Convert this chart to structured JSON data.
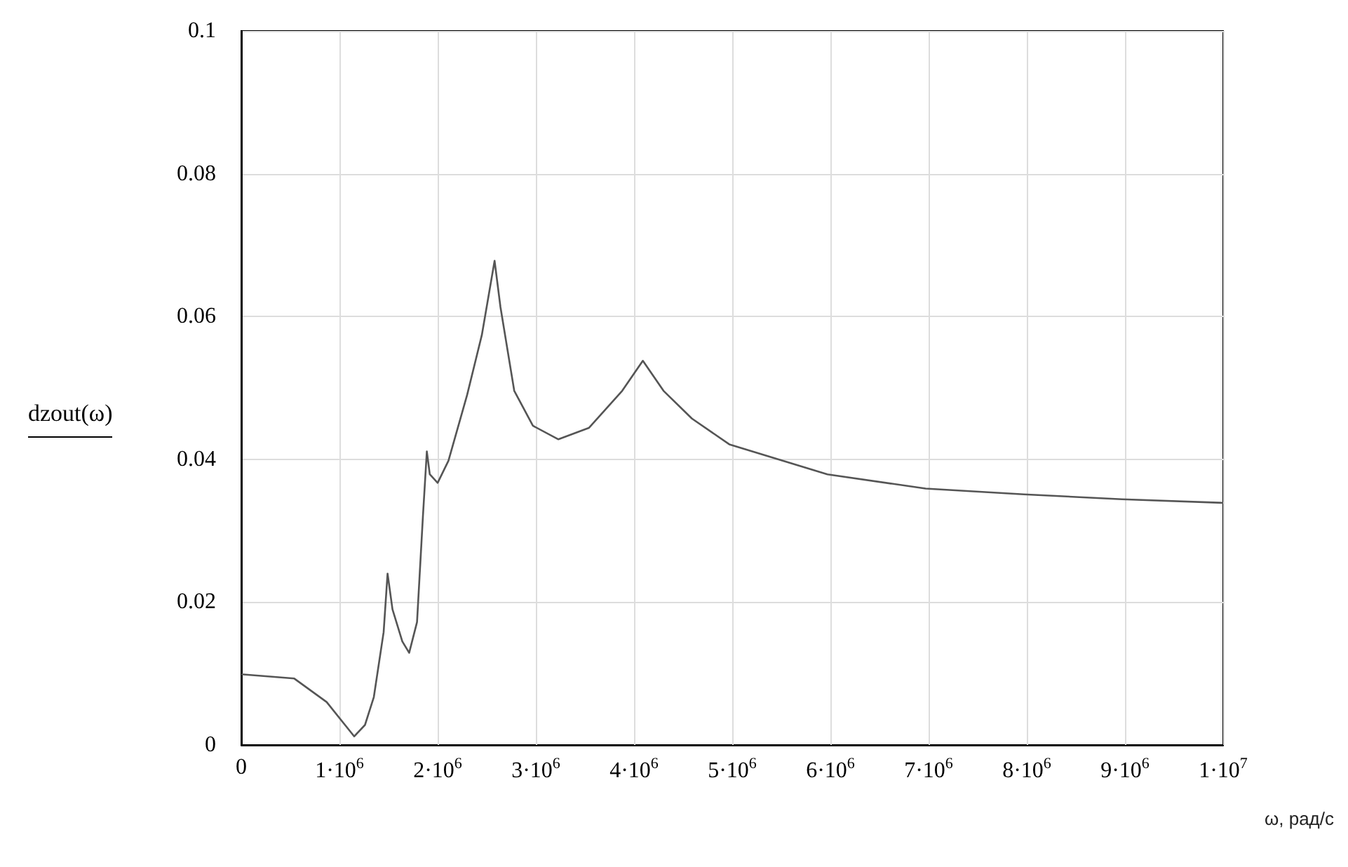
{
  "chart_data": {
    "type": "line",
    "ylabel": "dzout(ω)",
    "xlabel": "ω, рад/с",
    "x": [
      0,
      540000,
      870000,
      1150000,
      1260000,
      1350000,
      1450000,
      1490000,
      1540000,
      1640000,
      1710000,
      1790000,
      1850000,
      1890000,
      1920000,
      2000000,
      2110000,
      2300000,
      2450000,
      2580000,
      2640000,
      2780000,
      2970000,
      3230000,
      3540000,
      3880000,
      4090000,
      4300000,
      4590000,
      4970000,
      5970000,
      6970000,
      7970000,
      8970000,
      10000000
    ],
    "series": [
      {
        "color": "#555555",
        "values": [
          0.0099,
          0.0093,
          0.006,
          0.0012,
          0.0028,
          0.0067,
          0.0158,
          0.024,
          0.019,
          0.0145,
          0.0129,
          0.0172,
          0.032,
          0.0411,
          0.0379,
          0.0367,
          0.0398,
          0.049,
          0.0574,
          0.0678,
          0.0613,
          0.0496,
          0.0447,
          0.0428,
          0.0444,
          0.0496,
          0.0538,
          0.0496,
          0.0457,
          0.0421,
          0.0379,
          0.0359,
          0.0351,
          0.0344,
          0.0339
        ]
      }
    ],
    "xlim": [
      0,
      10000000
    ],
    "xticks": [
      0,
      {
        "value": 1000000,
        "label": "1·10$^{6}$"
      },
      {
        "value": 2000000,
        "label": "2·10$^{6}$"
      },
      {
        "value": 3000000,
        "label": "3·10$^{6}$"
      },
      {
        "value": 4000000,
        "label": "4·10$^{6}$"
      },
      {
        "value": 5000000,
        "label": "5·10$^{6}$"
      },
      {
        "value": 6000000,
        "label": "6·10$^{6}$"
      },
      {
        "value": 7000000,
        "label": "7·10$^{6}$"
      },
      {
        "value": 8000000,
        "label": "8·10$^{6}$"
      },
      {
        "value": 9000000,
        "label": "9·10$^{6}$"
      },
      {
        "value": 10000000,
        "label": "1·10$^{7}$"
      }
    ],
    "ylim": [
      0,
      0.1
    ],
    "yticks": [
      0,
      0.02,
      0.04,
      0.06,
      0.08,
      0.1
    ],
    "grid": true,
    "marker": "none",
    "line_style": "solid"
  }
}
